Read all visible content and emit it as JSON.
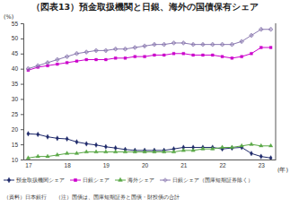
{
  "chart_data": {
    "type": "line",
    "title": "（図表13）預金取扱機関と日銀、海外の国債保有シェア",
    "ylabel": "(%)",
    "xlabel": "(年)",
    "notes": [
      "（資料）日本銀行",
      "（注）国債は、国庫短期証券と国債・財投債の合計"
    ],
    "categories": [
      "17",
      null,
      null,
      null,
      "18",
      null,
      null,
      null,
      "19",
      null,
      null,
      null,
      "20",
      null,
      null,
      null,
      "21",
      null,
      null,
      null,
      "22",
      null,
      null,
      null,
      "23",
      null
    ],
    "series": [
      {
        "name": "預金取扱機関シェア",
        "color": "#1f2a6b",
        "marker": "diamond",
        "values": [
          18.5,
          18.3,
          17.5,
          17.0,
          16.8,
          15.8,
          15.2,
          14.8,
          14.2,
          13.8,
          13.3,
          13.0,
          13.0,
          13.0,
          13.0,
          13.5,
          14.0,
          14.0,
          14.0,
          14.0,
          13.5,
          13.8,
          14.0,
          12.0,
          11.0,
          10.5
        ]
      },
      {
        "name": "日銀シェア",
        "color": "#cc00cc",
        "marker": "square",
        "values": [
          39.5,
          40.5,
          41.0,
          41.5,
          42.0,
          42.5,
          43.0,
          43.0,
          43.0,
          43.5,
          43.5,
          44.0,
          44.0,
          44.5,
          44.5,
          45.0,
          45.0,
          44.5,
          44.5,
          44.5,
          44.0,
          43.5,
          44.0,
          45.0,
          47.0,
          47.0
        ]
      },
      {
        "name": "海外シェア",
        "color": "#5aa846",
        "marker": "triangle",
        "values": [
          10.5,
          11.0,
          11.0,
          11.5,
          12.0,
          12.0,
          12.5,
          12.5,
          12.5,
          12.5,
          12.5,
          12.5,
          12.5,
          12.5,
          12.5,
          12.5,
          13.0,
          13.0,
          13.5,
          13.5,
          14.0,
          14.0,
          14.5,
          15.0,
          14.5,
          14.5
        ]
      },
      {
        "name": "日銀シェア（国庫短期証券除く）",
        "color": "#8a78b0",
        "marker": "cross",
        "values": [
          40.0,
          41.0,
          42.0,
          43.0,
          44.0,
          45.0,
          45.5,
          46.0,
          46.0,
          46.5,
          46.5,
          47.0,
          47.5,
          48.0,
          48.0,
          48.5,
          48.5,
          48.0,
          48.0,
          48.0,
          48.0,
          48.0,
          49.0,
          51.0,
          53.0,
          53.0
        ]
      }
    ],
    "ylim": [
      10,
      55
    ],
    "yticks": [
      10,
      15,
      20,
      25,
      30,
      35,
      40,
      45,
      50,
      55
    ],
    "grid": false,
    "legend": "bottom"
  }
}
